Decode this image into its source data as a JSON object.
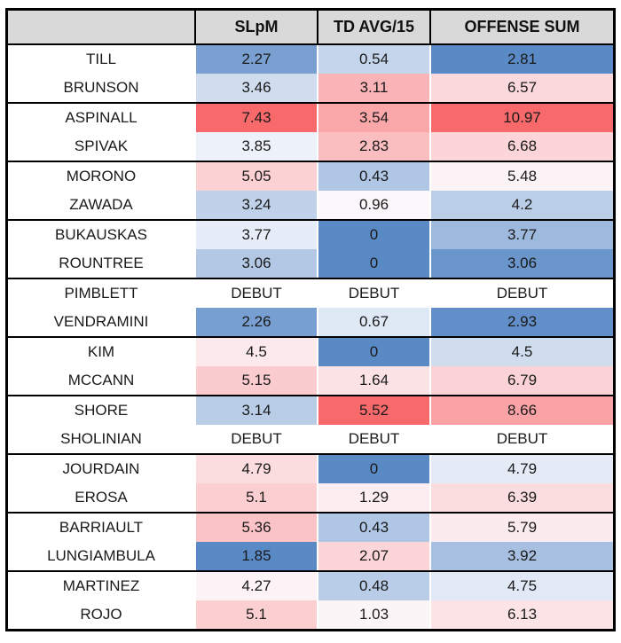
{
  "chart_data": {
    "type": "table",
    "title": "",
    "columns": [
      "",
      "SLpM",
      "TD AVG/15",
      "OFFENSE SUM"
    ],
    "legend": "heatmap per column: blue = low, white = mid, red = high",
    "color_scale": {
      "min_color": "#5A8AC6",
      "mid_color": "#FCFCFF",
      "max_color": "#F8696B",
      "header_bg": "#D9D9D9",
      "border_color": "#000000"
    },
    "pairs": [
      {
        "rows": [
          {
            "name": "TILL",
            "values": [
              "2.27",
              "0.54",
              "2.81"
            ],
            "colors": [
              "#79A0D1",
              "#C5D6EC",
              "#5A8AC6"
            ]
          },
          {
            "name": "BRUNSON",
            "values": [
              "3.46",
              "3.11",
              "6.57"
            ],
            "colors": [
              "#D0DDEF",
              "#FAB4B7",
              "#FBD8DB"
            ]
          }
        ]
      },
      {
        "rows": [
          {
            "name": "ASPINALL",
            "values": [
              "7.43",
              "3.54",
              "10.97"
            ],
            "colors": [
              "#F8696B",
              "#FAA7A9",
              "#F8696B"
            ]
          },
          {
            "name": "SPIVAK",
            "values": [
              "3.85",
              "2.83",
              "6.68"
            ],
            "colors": [
              "#EDF1FA",
              "#FABDC0",
              "#FBD5D8"
            ]
          }
        ]
      },
      {
        "rows": [
          {
            "name": "MORONO",
            "values": [
              "5.05",
              "0.43",
              "5.48"
            ],
            "colors": [
              "#FBD1D4",
              "#AFC6E4",
              "#FCF3F6"
            ]
          },
          {
            "name": "ZAWADA",
            "values": [
              "3.24",
              "0.96",
              "4.2"
            ],
            "colors": [
              "#C0D2EA",
              "#FCF7FA",
              "#BBCEE8"
            ]
          }
        ]
      },
      {
        "rows": [
          {
            "name": "BUKAUSKAS",
            "values": [
              "3.77",
              "0",
              "3.77"
            ],
            "colors": [
              "#E7EDF8",
              "#5A8AC6",
              "#9DB9DE"
            ]
          },
          {
            "name": "ROUNTREE",
            "values": [
              "3.06",
              "0",
              "3.06"
            ],
            "colors": [
              "#B3C8E5",
              "#5A8AC6",
              "#6B96CC"
            ]
          }
        ]
      },
      {
        "rows": [
          {
            "name": "PIMBLETT",
            "values": [
              "DEBUT",
              "DEBUT",
              "DEBUT"
            ],
            "colors": [
              "#FFFFFF",
              "#FFFFFF",
              "#FFFFFF"
            ]
          },
          {
            "name": "VENDRAMINI",
            "values": [
              "2.26",
              "0.67",
              "2.93"
            ],
            "colors": [
              "#789FD1",
              "#DFE8F5",
              "#628FC9"
            ]
          }
        ]
      },
      {
        "rows": [
          {
            "name": "KIM",
            "values": [
              "4.5",
              "0",
              "4.5"
            ],
            "colors": [
              "#FCE9EC",
              "#5A8AC6",
              "#D0DDEF"
            ]
          },
          {
            "name": "MCCANN",
            "values": [
              "5.15",
              "1.64",
              "6.79"
            ],
            "colors": [
              "#FBCCCF",
              "#FBE2E5",
              "#FBD2D5"
            ]
          }
        ]
      },
      {
        "rows": [
          {
            "name": "SHORE",
            "values": [
              "3.14",
              "5.52",
              "8.66"
            ],
            "colors": [
              "#B9CDE7",
              "#F8696B",
              "#FAA3A6"
            ]
          },
          {
            "name": "SHOLINIAN",
            "values": [
              "DEBUT",
              "DEBUT",
              "DEBUT"
            ],
            "colors": [
              "#FFFFFF",
              "#FFFFFF",
              "#FFFFFF"
            ]
          }
        ]
      },
      {
        "rows": [
          {
            "name": "JOURDAIN",
            "values": [
              "4.79",
              "0",
              "4.79"
            ],
            "colors": [
              "#FBDCDF",
              "#5A8AC6",
              "#E4EBF6"
            ]
          },
          {
            "name": "EROSA",
            "values": [
              "5.1",
              "1.29",
              "6.39"
            ],
            "colors": [
              "#FBCFD1",
              "#FCEDF0",
              "#FBDCDF"
            ]
          }
        ]
      },
      {
        "rows": [
          {
            "name": "BARRIAULT",
            "values": [
              "5.36",
              "0.43",
              "5.79"
            ],
            "colors": [
              "#FAC3C6",
              "#AFC6E4",
              "#FCEBEE"
            ]
          },
          {
            "name": "LUNGIAMBULA",
            "values": [
              "1.85",
              "2.07",
              "3.92"
            ],
            "colors": [
              "#5A8AC6",
              "#FBD5D8",
              "#A7C0E1"
            ]
          }
        ]
      },
      {
        "rows": [
          {
            "name": "MARTINEZ",
            "values": [
              "4.27",
              "0.48",
              "4.75"
            ],
            "colors": [
              "#FCF3F6",
              "#B9CDE8",
              "#E1E9F6"
            ]
          },
          {
            "name": "ROJO",
            "values": [
              "5.1",
              "1.03",
              "6.13"
            ],
            "colors": [
              "#FBCFD1",
              "#FCF5F8",
              "#FBE3E6"
            ]
          }
        ]
      }
    ]
  }
}
